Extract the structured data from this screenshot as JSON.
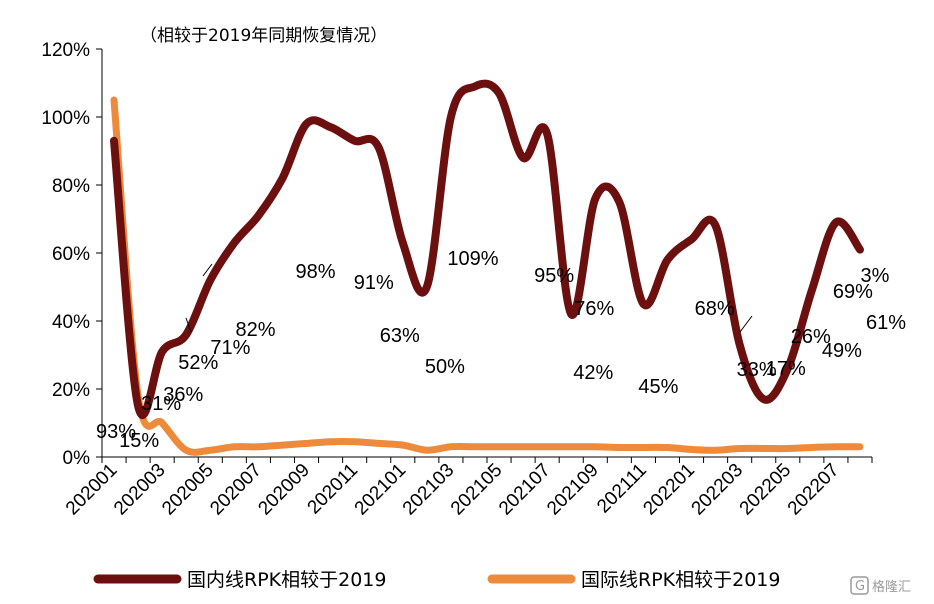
{
  "chart_data": {
    "type": "line",
    "title": "（相较于2019年同期恢复情况）",
    "xlabel": "",
    "ylabel": "",
    "ylim": [
      0,
      120
    ],
    "yticks": [
      "0%",
      "20%",
      "40%",
      "60%",
      "80%",
      "100%",
      "120%"
    ],
    "ytick_values": [
      0,
      20,
      40,
      60,
      80,
      100,
      120
    ],
    "xtick_labels": [
      "202001",
      "202003",
      "202005",
      "202007",
      "202009",
      "202011",
      "202101",
      "202103",
      "202105",
      "202107",
      "202109",
      "202111",
      "202201",
      "202203",
      "202205",
      "202207"
    ],
    "x": [
      "202001",
      "202002",
      "202003",
      "202004",
      "202005",
      "202006",
      "202007",
      "202008",
      "202009",
      "202010",
      "202011",
      "202012",
      "202101",
      "202102",
      "202103",
      "202104",
      "202105",
      "202106",
      "202107",
      "202108",
      "202109",
      "202110",
      "202111",
      "202112",
      "202201",
      "202202",
      "202203",
      "202204",
      "202205",
      "202206",
      "202207",
      "202208"
    ],
    "grid": false,
    "legend_position": "bottom",
    "series": [
      {
        "name": "国内线RPK相较于2019",
        "color": "#6b0f0f",
        "values": [
          93,
          15,
          31,
          36,
          52,
          63,
          71,
          82,
          98,
          97,
          93,
          91,
          63,
          50,
          100,
          109,
          107,
          88,
          95,
          42,
          76,
          75,
          45,
          58,
          64,
          68,
          33,
          17,
          26,
          49,
          69,
          61
        ]
      },
      {
        "name": "国际线RPK相较于2019",
        "color": "#ee8a3b",
        "values": [
          105,
          18,
          10,
          2,
          2,
          3,
          3,
          3.5,
          4,
          4.5,
          4.5,
          4,
          3.5,
          2,
          3,
          3,
          3,
          3,
          3,
          3,
          3,
          2.8,
          2.8,
          2.8,
          2.2,
          2,
          2.5,
          2.5,
          2.5,
          2.8,
          3,
          3
        ]
      }
    ],
    "annotations": [
      {
        "text": "93%",
        "series": 0,
        "index": 0
      },
      {
        "text": "15%",
        "series": 0,
        "index": 1
      },
      {
        "text": "31%",
        "series": 0,
        "index": 2
      },
      {
        "text": "36%",
        "series": 0,
        "index": 3
      },
      {
        "text": "52%",
        "series": 0,
        "index": 4
      },
      {
        "text": "71%",
        "series": 0,
        "index": 6
      },
      {
        "text": "82%",
        "series": 0,
        "index": 7
      },
      {
        "text": "98%",
        "series": 0,
        "index": 8
      },
      {
        "text": "91%",
        "series": 0,
        "index": 11
      },
      {
        "text": "63%",
        "series": 0,
        "index": 12
      },
      {
        "text": "50%",
        "series": 0,
        "index": 13
      },
      {
        "text": "109%",
        "series": 0,
        "index": 15
      },
      {
        "text": "95%",
        "series": 0,
        "index": 18
      },
      {
        "text": "42%",
        "series": 0,
        "index": 19
      },
      {
        "text": "76%",
        "series": 0,
        "index": 20
      },
      {
        "text": "45%",
        "series": 0,
        "index": 22
      },
      {
        "text": "68%",
        "series": 0,
        "index": 25
      },
      {
        "text": "33%",
        "series": 0,
        "index": 26
      },
      {
        "text": "17%",
        "series": 0,
        "index": 27
      },
      {
        "text": "26%",
        "series": 0,
        "index": 28
      },
      {
        "text": "49%",
        "series": 0,
        "index": 29
      },
      {
        "text": "69%",
        "series": 0,
        "index": 30
      },
      {
        "text": "61%",
        "series": 0,
        "index": 31
      },
      {
        "text": "3%",
        "series": 1,
        "index": 31
      }
    ]
  },
  "watermark": {
    "text": "格隆汇"
  }
}
